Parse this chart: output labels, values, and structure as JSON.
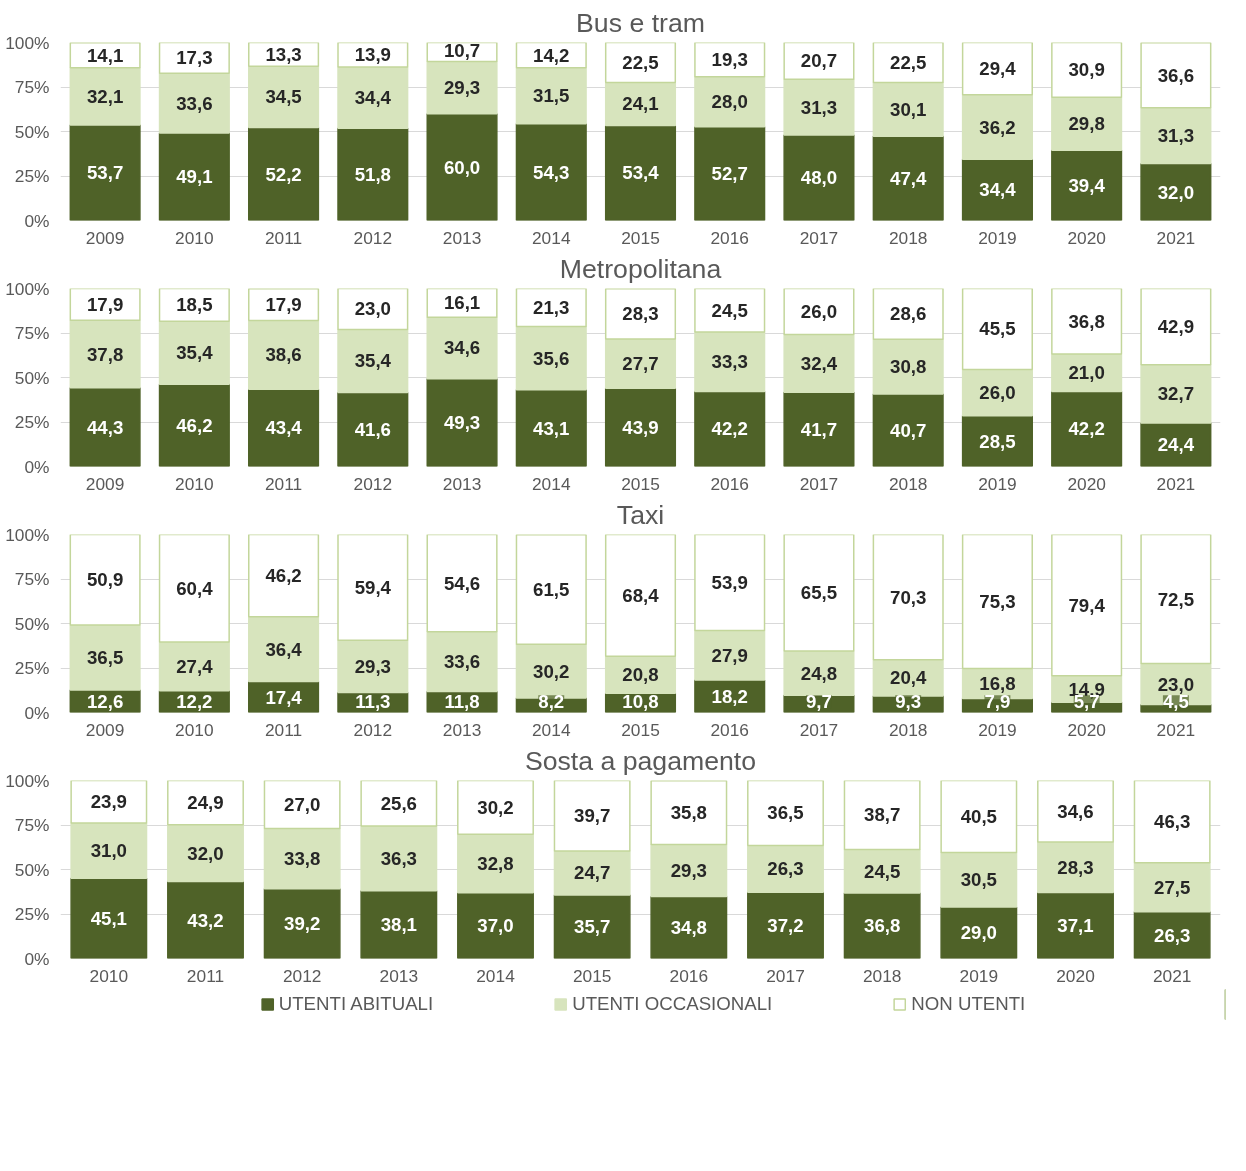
{
  "chart_data": [
    {
      "type": "bar",
      "title": "Bus e tram",
      "stacked": true,
      "categories": [
        "2009",
        "2010",
        "2011",
        "2012",
        "2013",
        "2014",
        "2015",
        "2016",
        "2017",
        "2018",
        "2019",
        "2020",
        "2021"
      ],
      "ylim": [
        0,
        100
      ],
      "yticks": [
        {
          "value": 0,
          "label": "0%"
        },
        {
          "value": 25,
          "label": "25%"
        },
        {
          "value": 50,
          "label": "50%"
        },
        {
          "value": 75,
          "label": "75%"
        },
        {
          "value": 100,
          "label": "100%"
        }
      ],
      "grid": "y",
      "legend": false,
      "series": [
        {
          "color": "#4f6228",
          "values": [
            53.7,
            49.1,
            52.2,
            51.8,
            60.0,
            54.3,
            53.4,
            52.7,
            48.0,
            47.4,
            34.4,
            39.4,
            32.0
          ],
          "value_labels": [
            "53,7",
            "49,1",
            "52,2",
            "51,8",
            "60,0",
            "54,3",
            "53,4",
            "52,7",
            "48,0",
            "47,4",
            "34,4",
            "39,4",
            "32,0"
          ]
        },
        {
          "color": "#d7e4bd",
          "values": [
            32.1,
            33.6,
            34.5,
            34.4,
            29.3,
            31.5,
            24.1,
            28.0,
            31.3,
            30.1,
            36.2,
            29.8,
            31.3
          ],
          "value_labels": [
            "32,1",
            "33,6",
            "34,5",
            "34,4",
            "29,3",
            "31,5",
            "24,1",
            "28,0",
            "31,3",
            "30,1",
            "36,2",
            "29,8",
            "31,3"
          ]
        },
        {
          "color": "#ffffff",
          "values": [
            14.1,
            17.3,
            13.3,
            13.9,
            10.7,
            14.2,
            22.5,
            19.3,
            20.7,
            22.5,
            29.4,
            30.9,
            36.6
          ],
          "value_labels": [
            "14,1",
            "17,3",
            "13,3",
            "13,9",
            "10,7",
            "14,2",
            "22,5",
            "19,3",
            "20,7",
            "22,5",
            "29,4",
            "30,9",
            "36,6"
          ]
        }
      ]
    },
    {
      "type": "bar",
      "title": "Metropolitana",
      "stacked": true,
      "categories": [
        "2009",
        "2010",
        "2011",
        "2012",
        "2013",
        "2014",
        "2015",
        "2016",
        "2017",
        "2018",
        "2019",
        "2020",
        "2021"
      ],
      "ylim": [
        0,
        100
      ],
      "yticks": [
        {
          "value": 0,
          "label": "0%"
        },
        {
          "value": 25,
          "label": "25%"
        },
        {
          "value": 50,
          "label": "50%"
        },
        {
          "value": 75,
          "label": "75%"
        },
        {
          "value": 100,
          "label": "100%"
        }
      ],
      "grid": "y",
      "legend": false,
      "series": [
        {
          "color": "#4f6228",
          "values": [
            44.3,
            46.2,
            43.4,
            41.6,
            49.3,
            43.1,
            43.9,
            42.2,
            41.7,
            40.7,
            28.5,
            42.2,
            24.4
          ],
          "value_labels": [
            "44,3",
            "46,2",
            "43,4",
            "41,6",
            "49,3",
            "43,1",
            "43,9",
            "42,2",
            "41,7",
            "40,7",
            "28,5",
            "42,2",
            "24,4"
          ]
        },
        {
          "color": "#d7e4bd",
          "values": [
            37.8,
            35.4,
            38.6,
            35.4,
            34.6,
            35.6,
            27.7,
            33.3,
            32.4,
            30.8,
            26.0,
            21.0,
            32.7
          ],
          "value_labels": [
            "37,8",
            "35,4",
            "38,6",
            "35,4",
            "34,6",
            "35,6",
            "27,7",
            "33,3",
            "32,4",
            "30,8",
            "26,0",
            "21,0",
            "32,7"
          ]
        },
        {
          "color": "#ffffff",
          "values": [
            17.9,
            18.5,
            17.9,
            23.0,
            16.1,
            21.3,
            28.3,
            24.5,
            26.0,
            28.6,
            45.5,
            36.8,
            42.9
          ],
          "value_labels": [
            "17,9",
            "18,5",
            "17,9",
            "23,0",
            "16,1",
            "21,3",
            "28,3",
            "24,5",
            "26,0",
            "28,6",
            "45,5",
            "36,8",
            "42,9"
          ]
        }
      ]
    },
    {
      "type": "bar",
      "title": "Taxi",
      "stacked": true,
      "categories": [
        "2009",
        "2010",
        "2011",
        "2012",
        "2013",
        "2014",
        "2015",
        "2016",
        "2017",
        "2018",
        "2019",
        "2020",
        "2021"
      ],
      "ylim": [
        0,
        100
      ],
      "yticks": [
        {
          "value": 0,
          "label": "0%"
        },
        {
          "value": 25,
          "label": "25%"
        },
        {
          "value": 50,
          "label": "50%"
        },
        {
          "value": 75,
          "label": "75%"
        },
        {
          "value": 100,
          "label": "100%"
        }
      ],
      "grid": "y",
      "legend": false,
      "series": [
        {
          "color": "#4f6228",
          "values": [
            12.6,
            12.2,
            17.4,
            11.3,
            11.8,
            8.2,
            10.8,
            18.2,
            9.7,
            9.3,
            7.9,
            5.7,
            4.5
          ],
          "value_labels": [
            "12,6",
            "12,2",
            "17,4",
            "11,3",
            "11,8",
            "8,2",
            "10,8",
            "18,2",
            "9,7",
            "9,3",
            "7,9",
            "5,7",
            "4,5"
          ]
        },
        {
          "color": "#d7e4bd",
          "values": [
            36.5,
            27.4,
            36.4,
            29.3,
            33.6,
            30.2,
            20.8,
            27.9,
            24.8,
            20.4,
            16.8,
            14.9,
            23.0
          ],
          "value_labels": [
            "36,5",
            "27,4",
            "36,4",
            "29,3",
            "33,6",
            "30,2",
            "20,8",
            "27,9",
            "24,8",
            "20,4",
            "16,8",
            "14,9",
            "23,0"
          ]
        },
        {
          "color": "#ffffff",
          "values": [
            50.9,
            60.4,
            46.2,
            59.4,
            54.6,
            61.5,
            68.4,
            53.9,
            65.5,
            70.3,
            75.3,
            79.4,
            72.5
          ],
          "value_labels": [
            "50,9",
            "60,4",
            "46,2",
            "59,4",
            "54,6",
            "61,5",
            "68,4",
            "53,9",
            "65,5",
            "70,3",
            "75,3",
            "79,4",
            "72,5"
          ]
        }
      ]
    },
    {
      "type": "bar",
      "title": "Sosta a pagamento",
      "stacked": true,
      "categories": [
        "2010",
        "2011",
        "2012",
        "2013",
        "2014",
        "2015",
        "2016",
        "2017",
        "2018",
        "2019",
        "2020",
        "2021"
      ],
      "ylim": [
        0,
        100
      ],
      "yticks": [
        {
          "value": 0,
          "label": "0%"
        },
        {
          "value": 25,
          "label": "25%"
        },
        {
          "value": 50,
          "label": "50%"
        },
        {
          "value": 75,
          "label": "75%"
        },
        {
          "value": 100,
          "label": "100%"
        }
      ],
      "grid": "y",
      "legend": "bottom",
      "series": [
        {
          "name": "UTENTI ABITUALI",
          "color": "#4f6228",
          "values": [
            45.1,
            43.2,
            39.2,
            38.1,
            37.0,
            35.7,
            34.8,
            37.2,
            36.8,
            29.0,
            37.1,
            26.3
          ],
          "value_labels": [
            "45,1",
            "43,2",
            "39,2",
            "38,1",
            "37,0",
            "35,7",
            "34,8",
            "37,2",
            "36,8",
            "29,0",
            "37,1",
            "26,3"
          ]
        },
        {
          "name": "UTENTI OCCASIONALI",
          "color": "#d7e4bd",
          "values": [
            31.0,
            32.0,
            33.8,
            36.3,
            32.8,
            24.7,
            29.3,
            26.3,
            24.5,
            30.5,
            28.3,
            27.5
          ],
          "value_labels": [
            "31,0",
            "32,0",
            "33,8",
            "36,3",
            "32,8",
            "24,7",
            "29,3",
            "26,3",
            "24,5",
            "30,5",
            "28,3",
            "27,5"
          ]
        },
        {
          "name": "NON UTENTI",
          "color": "#ffffff",
          "values": [
            23.9,
            24.9,
            27.0,
            25.6,
            30.2,
            39.7,
            35.8,
            36.5,
            38.7,
            40.5,
            34.6,
            46.3
          ],
          "value_labels": [
            "23,9",
            "24,9",
            "27,0",
            "25,6",
            "30,2",
            "39,7",
            "35,8",
            "36,5",
            "38,7",
            "40,5",
            "34,6",
            "46,3"
          ]
        }
      ]
    }
  ]
}
